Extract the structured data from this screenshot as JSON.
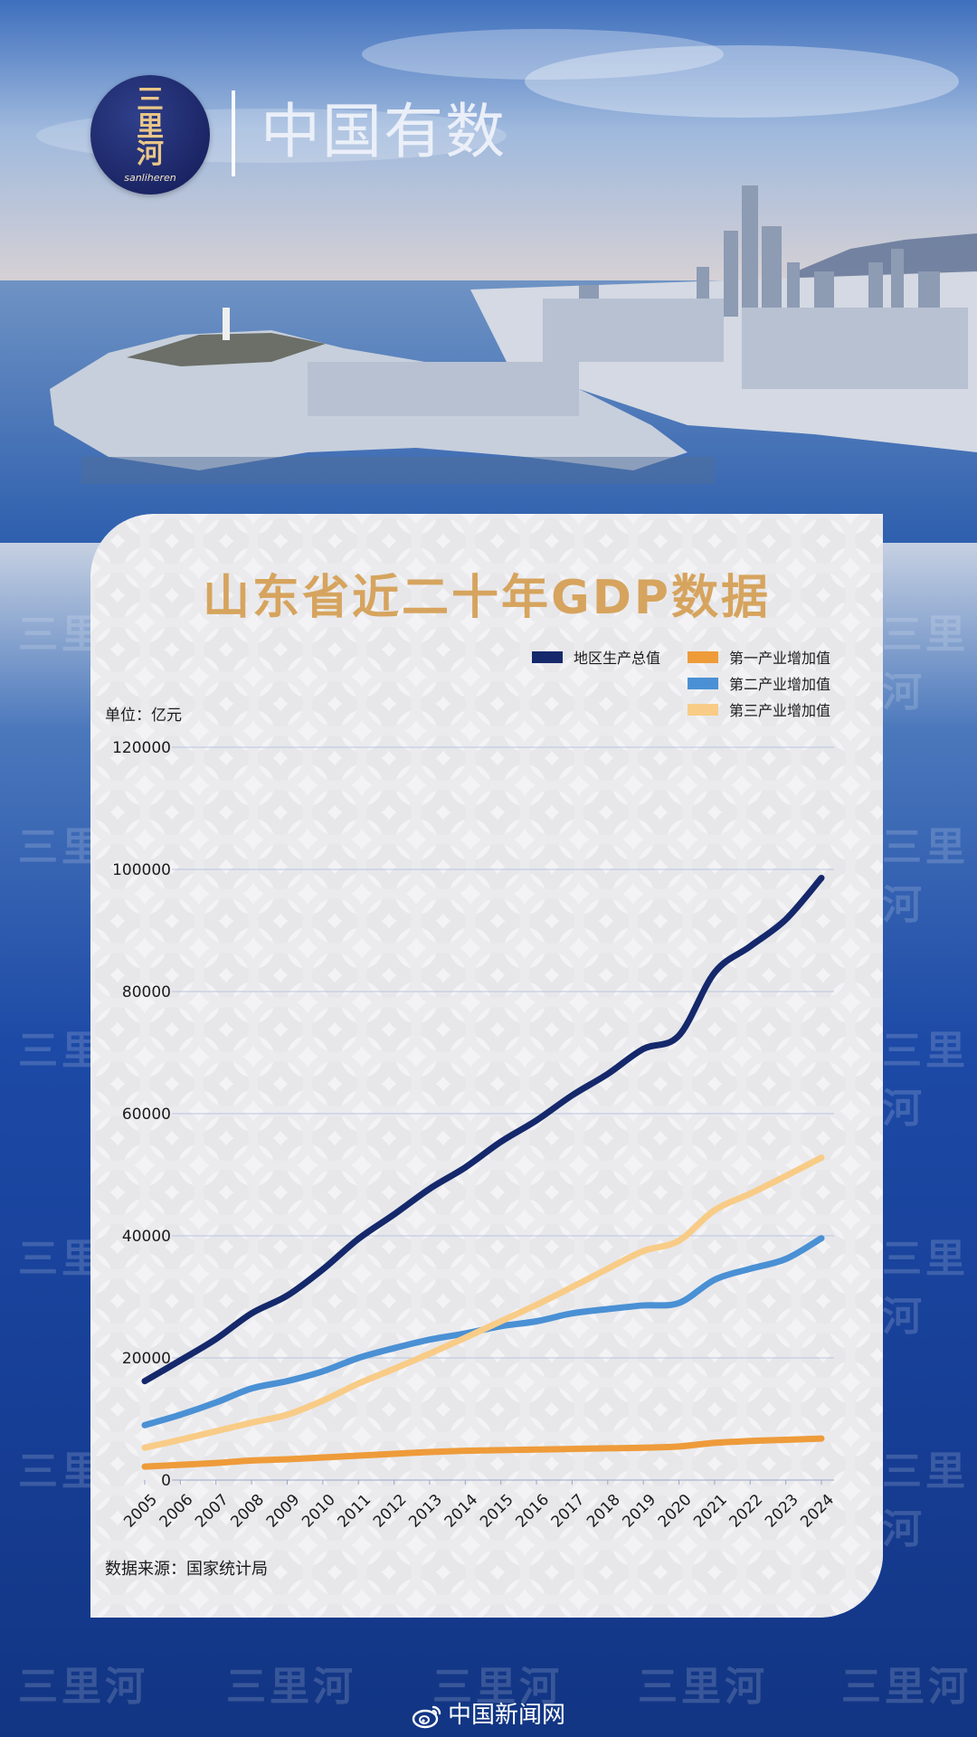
{
  "brand": {
    "logo_chars": [
      "三",
      "里",
      "河"
    ],
    "logo_sub": "sanliheren",
    "title": "中国有数",
    "watermark": "三里河"
  },
  "card": {
    "title": "山东省近二十年GDP数据",
    "unit_label": "单位：亿元",
    "source_label": "数据来源：国家统计局"
  },
  "footer": {
    "text": "中国新闻网",
    "icon": "weibo-icon"
  },
  "colors": {
    "gdp": "#14286b",
    "primary": "#ee9b3a",
    "secondary": "#4a90d4",
    "tertiary": "#f8cc87",
    "title": "#d6a45e"
  },
  "chart_data": {
    "type": "line",
    "title": "山东省近二十年GDP数据",
    "ylabel": "单位：亿元",
    "xlabel": "",
    "ylim": [
      0,
      120000
    ],
    "yticks": [
      0,
      20000,
      40000,
      60000,
      80000,
      100000,
      120000
    ],
    "grid": true,
    "legend_position": "top-right",
    "x": [
      "2005",
      "2006",
      "2007",
      "2008",
      "2009",
      "2010",
      "2011",
      "2012",
      "2013",
      "2014",
      "2015",
      "2016",
      "2017",
      "2018",
      "2019",
      "2020",
      "2021",
      "2022",
      "2023",
      "2024"
    ],
    "series": [
      {
        "name": "地区生产总值",
        "color": "#14286b",
        "values": [
          16200,
          19600,
          23100,
          27300,
          30200,
          34500,
          39500,
          43500,
          47700,
          51200,
          55400,
          58900,
          63000,
          66500,
          70600,
          72800,
          83100,
          87400,
          91800,
          98600
        ]
      },
      {
        "name": "第一产业增加值",
        "color": "#ee9b3a",
        "values": [
          2200,
          2500,
          2800,
          3200,
          3400,
          3700,
          4000,
          4300,
          4600,
          4800,
          4900,
          5000,
          5100,
          5200,
          5300,
          5500,
          6100,
          6400,
          6600,
          6800
        ]
      },
      {
        "name": "第二产业增加值",
        "color": "#4a90d4",
        "values": [
          9000,
          10700,
          12700,
          15000,
          16200,
          17800,
          20000,
          21600,
          23000,
          24000,
          25200,
          26000,
          27300,
          28000,
          28600,
          29000,
          32800,
          34600,
          36200,
          39600
        ]
      },
      {
        "name": "第三产业增加值",
        "color": "#f8cc87",
        "values": [
          5300,
          6600,
          8000,
          9400,
          10700,
          13000,
          15800,
          18200,
          20700,
          23300,
          26000,
          28700,
          31600,
          34600,
          37500,
          39200,
          44200,
          46900,
          49800,
          52800
        ]
      }
    ]
  }
}
